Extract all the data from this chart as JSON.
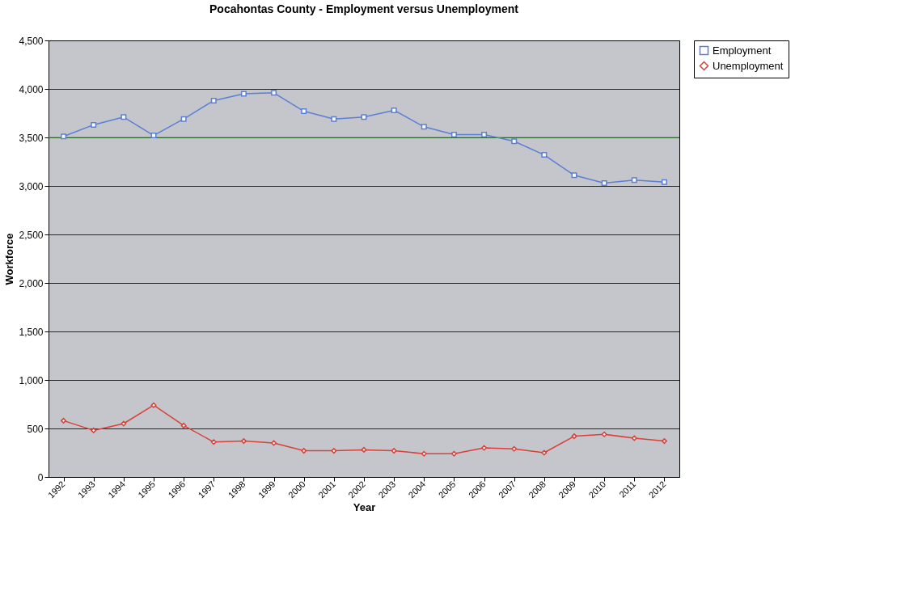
{
  "chart_data": {
    "type": "line",
    "title": "Pocahontas County - Employment versus Unemployment",
    "xlabel": "Year",
    "ylabel": "Workforce",
    "categories": [
      "1992",
      "1993",
      "1994",
      "1995",
      "1996",
      "1997",
      "1998",
      "1999",
      "2000",
      "2001",
      "2002",
      "2003",
      "2004",
      "2005",
      "2006",
      "2007",
      "2008",
      "2009",
      "2010",
      "2011",
      "2012"
    ],
    "series": [
      {
        "name": "Employment",
        "color": "#5b7fd6",
        "marker": "square",
        "values": [
          3510,
          3630,
          3710,
          3520,
          3690,
          3880,
          3950,
          3960,
          3770,
          3690,
          3710,
          3780,
          3610,
          3530,
          3530,
          3460,
          3320,
          3110,
          3030,
          3060,
          3040
        ]
      },
      {
        "name": "Unemployment",
        "color": "#d9403a",
        "marker": "diamond",
        "values": [
          580,
          480,
          550,
          740,
          530,
          360,
          370,
          350,
          270,
          270,
          280,
          270,
          240,
          240,
          300,
          290,
          250,
          420,
          440,
          400,
          370
        ]
      }
    ],
    "ylim": [
      0,
      4500
    ],
    "yticks": [
      {
        "value": 0,
        "label": "0"
      },
      {
        "value": 500,
        "label": "500"
      },
      {
        "value": 1000,
        "label": "1,000"
      },
      {
        "value": 1500,
        "label": "1,500"
      },
      {
        "value": 2000,
        "label": "2,000"
      },
      {
        "value": 2500,
        "label": "2,500"
      },
      {
        "value": 3000,
        "label": "3,000"
      },
      {
        "value": 3500,
        "label": "3,500"
      },
      {
        "value": 4000,
        "label": "4,000"
      },
      {
        "value": 4500,
        "label": "4,500"
      }
    ],
    "ref_lines": [
      {
        "axis": "y",
        "value": 3500,
        "color": "#3aa33a"
      }
    ],
    "grid": "y",
    "legend": "right",
    "line_style": "solid"
  }
}
